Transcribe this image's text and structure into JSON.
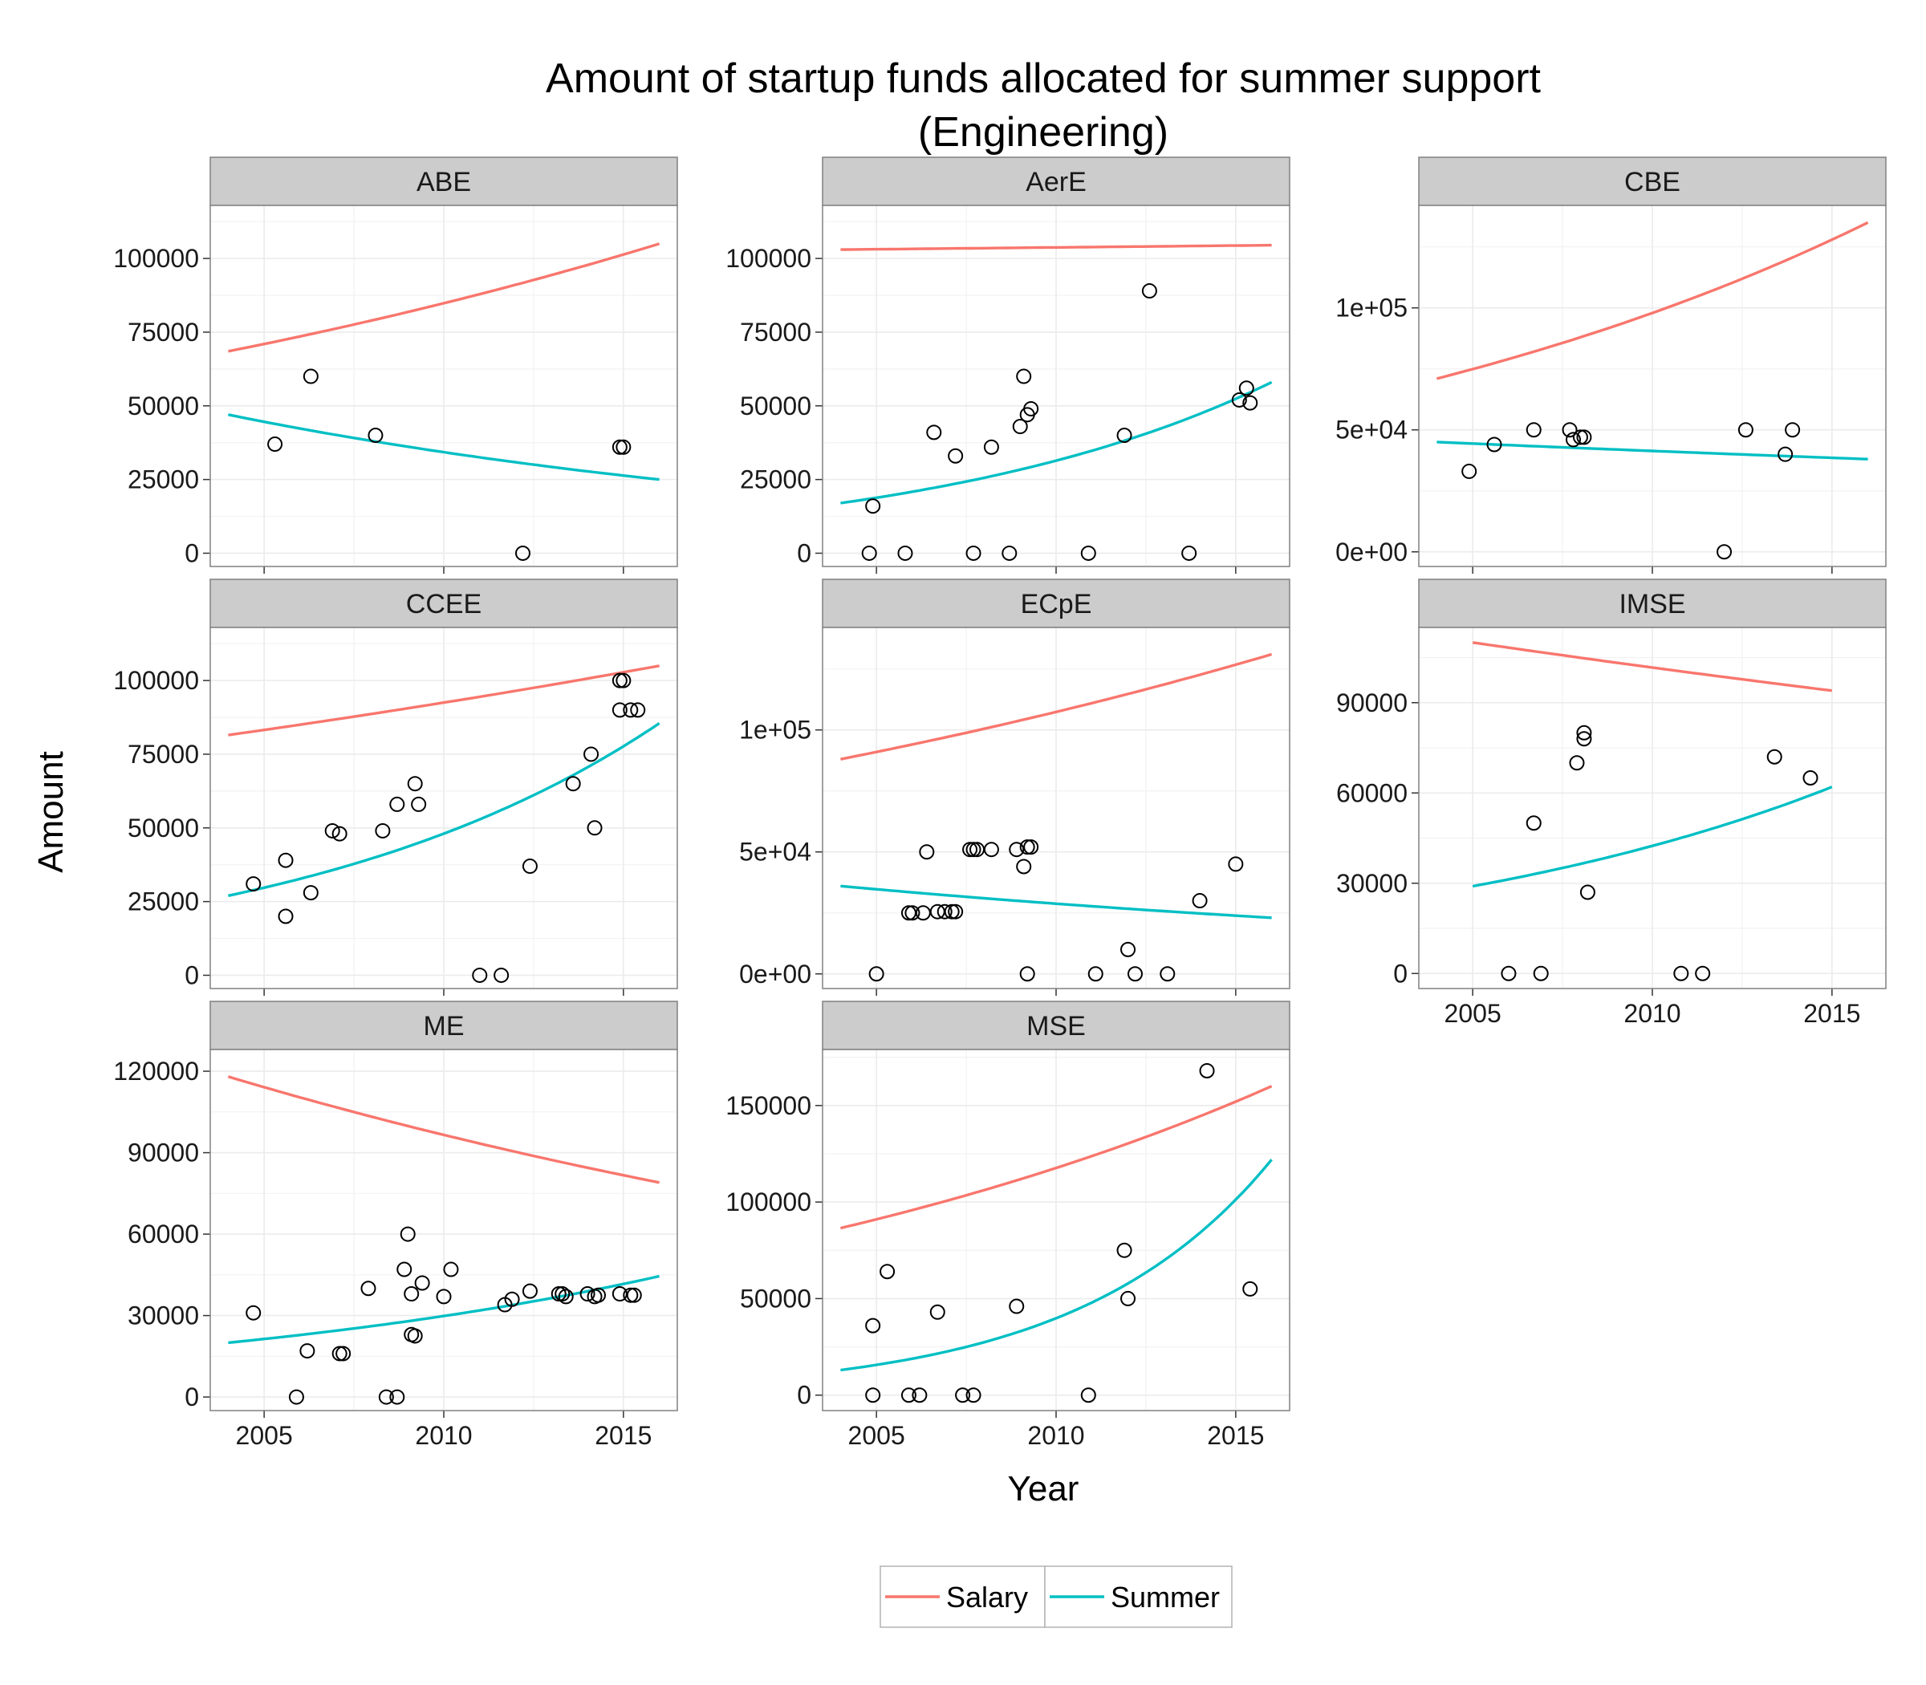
{
  "chart_data": {
    "type": "scatter",
    "title": [
      "Amount of startup funds allocated for summer support",
      "(Engineering)"
    ],
    "xlabel": "Year",
    "ylabel": "Amount",
    "xlim": [
      2003.5,
      2016.5
    ],
    "x_ticks": [
      2005,
      2010,
      2015
    ],
    "legend": {
      "placement": "bottom",
      "entries": [
        {
          "name": "Salary",
          "color": "#F8766D"
        },
        {
          "name": "Summer",
          "color": "#00BFC4"
        }
      ]
    },
    "grid": true,
    "panels": [
      {
        "name": "ABE",
        "ylim": [
          -4500,
          118000
        ],
        "y_ticks": [
          {
            "v": 0,
            "label": "0"
          },
          {
            "v": 25000,
            "label": "25000"
          },
          {
            "v": 50000,
            "label": "50000"
          },
          {
            "v": 75000,
            "label": "75000"
          },
          {
            "v": 100000,
            "label": "100000"
          }
        ],
        "points": [
          [
            2005.3,
            37000
          ],
          [
            2006.3,
            60000
          ],
          [
            2008.1,
            40000
          ],
          [
            2012.2,
            0
          ],
          [
            2014.9,
            36000
          ],
          [
            2015.0,
            36000
          ]
        ],
        "salary": {
          "start": [
            2004,
            68500
          ],
          "end": [
            2016,
            105000
          ]
        },
        "summer": {
          "start": [
            2004,
            47000
          ],
          "end": [
            2016,
            25000
          ]
        }
      },
      {
        "name": "AerE",
        "ylim": [
          -4500,
          118000
        ],
        "y_ticks": [
          {
            "v": 0,
            "label": "0"
          },
          {
            "v": 25000,
            "label": "25000"
          },
          {
            "v": 50000,
            "label": "50000"
          },
          {
            "v": 75000,
            "label": "75000"
          },
          {
            "v": 100000,
            "label": "100000"
          }
        ],
        "points": [
          [
            2004.8,
            0
          ],
          [
            2004.9,
            16000
          ],
          [
            2005.8,
            0
          ],
          [
            2006.6,
            41000
          ],
          [
            2007.2,
            33000
          ],
          [
            2007.7,
            0
          ],
          [
            2008.2,
            36000
          ],
          [
            2008.7,
            0
          ],
          [
            2009.0,
            43000
          ],
          [
            2009.1,
            60000
          ],
          [
            2009.2,
            47000
          ],
          [
            2009.3,
            49000
          ],
          [
            2010.9,
            0
          ],
          [
            2011.9,
            40000
          ],
          [
            2012.6,
            89000
          ],
          [
            2013.7,
            0
          ],
          [
            2015.1,
            52000
          ],
          [
            2015.3,
            56000
          ],
          [
            2015.4,
            51000
          ]
        ],
        "salary": {
          "start": [
            2004,
            103000
          ],
          "end": [
            2016,
            104500
          ]
        },
        "summer": {
          "start": [
            2004,
            17000
          ],
          "end": [
            2016,
            58000
          ]
        }
      },
      {
        "name": "CBE",
        "ylim": [
          -6000,
          142000
        ],
        "y_ticks": [
          {
            "v": 0,
            "label": "0e+00"
          },
          {
            "v": 50000,
            "label": "5e+04"
          },
          {
            "v": 100000,
            "label": "1e+05"
          }
        ],
        "points": [
          [
            2004.9,
            33000
          ],
          [
            2005.6,
            44000
          ],
          [
            2006.7,
            50000
          ],
          [
            2007.7,
            50000
          ],
          [
            2007.8,
            46000
          ],
          [
            2008.0,
            47000
          ],
          [
            2008.1,
            47000
          ],
          [
            2012.0,
            0
          ],
          [
            2012.6,
            50000
          ],
          [
            2013.7,
            40000
          ],
          [
            2013.9,
            50000
          ]
        ],
        "salary": {
          "start": [
            2004,
            71000
          ],
          "end": [
            2016,
            135000
          ]
        },
        "summer": {
          "start": [
            2004,
            45000
          ],
          "end": [
            2016,
            38000
          ]
        }
      },
      {
        "name": "CCEE",
        "ylim": [
          -4500,
          118000
        ],
        "y_ticks": [
          {
            "v": 0,
            "label": "0"
          },
          {
            "v": 25000,
            "label": "25000"
          },
          {
            "v": 50000,
            "label": "50000"
          },
          {
            "v": 75000,
            "label": "75000"
          },
          {
            "v": 100000,
            "label": "100000"
          }
        ],
        "points": [
          [
            2004.7,
            31000
          ],
          [
            2005.6,
            39000
          ],
          [
            2005.6,
            20000
          ],
          [
            2006.3,
            28000
          ],
          [
            2006.9,
            49000
          ],
          [
            2007.1,
            48000
          ],
          [
            2008.3,
            49000
          ],
          [
            2008.7,
            58000
          ],
          [
            2009.2,
            65000
          ],
          [
            2009.3,
            58000
          ],
          [
            2011.0,
            0
          ],
          [
            2011.6,
            0
          ],
          [
            2012.4,
            37000
          ],
          [
            2013.6,
            65000
          ],
          [
            2014.1,
            75000
          ],
          [
            2014.2,
            50000
          ],
          [
            2014.9,
            100000
          ],
          [
            2015.0,
            100000
          ],
          [
            2014.9,
            90000
          ],
          [
            2015.2,
            90000
          ],
          [
            2015.4,
            90000
          ]
        ],
        "salary": {
          "start": [
            2004,
            81500
          ],
          "end": [
            2016,
            105000
          ]
        },
        "summer": {
          "start": [
            2004,
            27000
          ],
          "end": [
            2016,
            85500
          ]
        }
      },
      {
        "name": "ECpE",
        "ylim": [
          -6000,
          142000
        ],
        "y_ticks": [
          {
            "v": 0,
            "label": "0e+00"
          },
          {
            "v": 50000,
            "label": "5e+04"
          },
          {
            "v": 100000,
            "label": "1e+05"
          }
        ],
        "points": [
          [
            2005.0,
            0
          ],
          [
            2005.9,
            25000
          ],
          [
            2006.0,
            25000
          ],
          [
            2006.3,
            25000
          ],
          [
            2006.4,
            50000
          ],
          [
            2006.7,
            25500
          ],
          [
            2006.9,
            25500
          ],
          [
            2007.1,
            25500
          ],
          [
            2007.2,
            25500
          ],
          [
            2007.6,
            51000
          ],
          [
            2007.7,
            51000
          ],
          [
            2007.8,
            51000
          ],
          [
            2008.2,
            51000
          ],
          [
            2008.9,
            51000
          ],
          [
            2009.1,
            44000
          ],
          [
            2009.2,
            0
          ],
          [
            2009.2,
            52000
          ],
          [
            2009.3,
            52000
          ],
          [
            2011.1,
            0
          ],
          [
            2012.0,
            10000
          ],
          [
            2012.2,
            0
          ],
          [
            2013.1,
            0
          ],
          [
            2014.0,
            30000
          ],
          [
            2015.0,
            45000
          ]
        ],
        "salary": {
          "start": [
            2004,
            88000
          ],
          "end": [
            2016,
            131000
          ]
        },
        "summer": {
          "start": [
            2004,
            36000
          ],
          "end": [
            2016,
            23000
          ]
        }
      },
      {
        "name": "IMSE",
        "ylim": [
          -5000,
          115000
        ],
        "y_ticks": [
          {
            "v": 0,
            "label": "0"
          },
          {
            "v": 30000,
            "label": "30000"
          },
          {
            "v": 60000,
            "label": "60000"
          },
          {
            "v": 90000,
            "label": "90000"
          }
        ],
        "points": [
          [
            2006.0,
            0
          ],
          [
            2006.7,
            50000
          ],
          [
            2006.9,
            0
          ],
          [
            2007.9,
            70000
          ],
          [
            2008.1,
            78000
          ],
          [
            2008.1,
            80000
          ],
          [
            2008.2,
            27000
          ],
          [
            2010.8,
            0
          ],
          [
            2011.4,
            0
          ],
          [
            2013.4,
            72000
          ],
          [
            2014.4,
            65000
          ]
        ],
        "salary": {
          "start": [
            2005,
            110000
          ],
          "end": [
            2015,
            94000
          ]
        },
        "summer": {
          "start": [
            2005,
            29000
          ],
          "end": [
            2015,
            62000
          ]
        }
      },
      {
        "name": "ME",
        "ylim": [
          -5000,
          128000
        ],
        "y_ticks": [
          {
            "v": 0,
            "label": "0"
          },
          {
            "v": 30000,
            "label": "30000"
          },
          {
            "v": 60000,
            "label": "60000"
          },
          {
            "v": 90000,
            "label": "90000"
          },
          {
            "v": 120000,
            "label": "120000"
          }
        ],
        "points": [
          [
            2004.7,
            31000
          ],
          [
            2005.9,
            0
          ],
          [
            2006.2,
            17000
          ],
          [
            2007.1,
            16000
          ],
          [
            2007.2,
            16000
          ],
          [
            2007.9,
            40000
          ],
          [
            2008.4,
            0
          ],
          [
            2008.7,
            0
          ],
          [
            2008.9,
            47000
          ],
          [
            2009.0,
            60000
          ],
          [
            2009.1,
            38000
          ],
          [
            2009.1,
            23000
          ],
          [
            2009.2,
            22500
          ],
          [
            2009.4,
            42000
          ],
          [
            2010.0,
            37000
          ],
          [
            2010.2,
            47000
          ],
          [
            2011.7,
            34000
          ],
          [
            2011.9,
            36000
          ],
          [
            2012.4,
            39000
          ],
          [
            2013.2,
            38000
          ],
          [
            2013.3,
            38000
          ],
          [
            2013.4,
            37000
          ],
          [
            2014.0,
            38000
          ],
          [
            2014.2,
            37000
          ],
          [
            2014.3,
            37500
          ],
          [
            2014.9,
            38000
          ],
          [
            2015.2,
            37500
          ],
          [
            2015.3,
            37500
          ]
        ],
        "salary": {
          "start": [
            2004,
            118000
          ],
          "end": [
            2016,
            79000
          ]
        },
        "summer": {
          "start": [
            2004,
            20000
          ],
          "end": [
            2016,
            44500
          ]
        }
      },
      {
        "name": "MSE",
        "ylim": [
          -8000,
          179000
        ],
        "y_ticks": [
          {
            "v": 0,
            "label": "0"
          },
          {
            "v": 50000,
            "label": "50000"
          },
          {
            "v": 100000,
            "label": "100000"
          },
          {
            "v": 150000,
            "label": "150000"
          }
        ],
        "points": [
          [
            2004.9,
            0
          ],
          [
            2004.9,
            36000
          ],
          [
            2005.3,
            64000
          ],
          [
            2005.9,
            0
          ],
          [
            2006.2,
            0
          ],
          [
            2006.7,
            43000
          ],
          [
            2007.4,
            0
          ],
          [
            2007.7,
            0
          ],
          [
            2008.9,
            46000
          ],
          [
            2010.9,
            0
          ],
          [
            2011.9,
            75000
          ],
          [
            2012.0,
            50000
          ],
          [
            2014.2,
            168000
          ],
          [
            2015.4,
            55000
          ]
        ],
        "salary": {
          "start": [
            2004,
            86500
          ],
          "end": [
            2016,
            160000
          ]
        },
        "summer": {
          "start": [
            2004,
            13000
          ],
          "end": [
            2016,
            122000
          ]
        }
      }
    ]
  }
}
